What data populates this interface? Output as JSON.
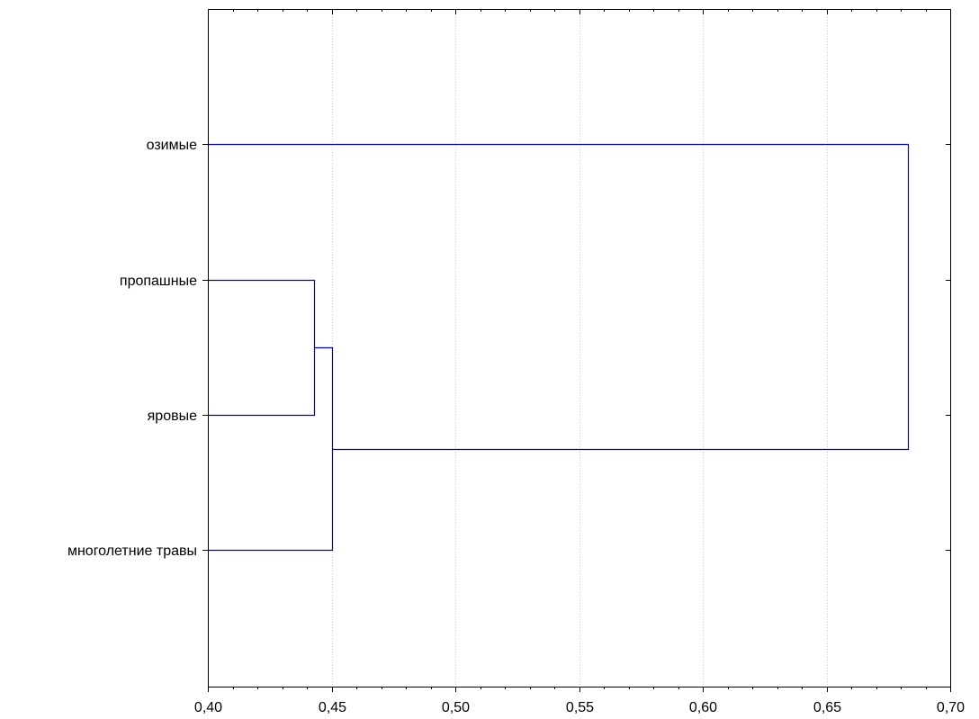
{
  "chart_data": {
    "type": "dendrogram",
    "orientation": "horizontal",
    "xlim": [
      0.4,
      0.7
    ],
    "x_ticks": [
      0.4,
      0.45,
      0.5,
      0.55,
      0.6,
      0.65,
      0.7
    ],
    "x_tick_labels": [
      "0,40",
      "0,45",
      "0,50",
      "0,55",
      "0,60",
      "0,65",
      "0,70"
    ],
    "minor_tick_step": 0.01,
    "grid": "vertical-dotted",
    "leaves": [
      "озимые",
      "пропашные",
      "яровые",
      "многолетние травы"
    ],
    "merges": [
      {
        "left": "пропашные",
        "right": "яровые",
        "height": 0.443
      },
      {
        "left": "cluster-1",
        "right": "многолетние травы",
        "height": 0.45
      },
      {
        "left": "озимые",
        "right": "cluster-2",
        "height": 0.683
      }
    ],
    "line_color": "#0000cc"
  }
}
